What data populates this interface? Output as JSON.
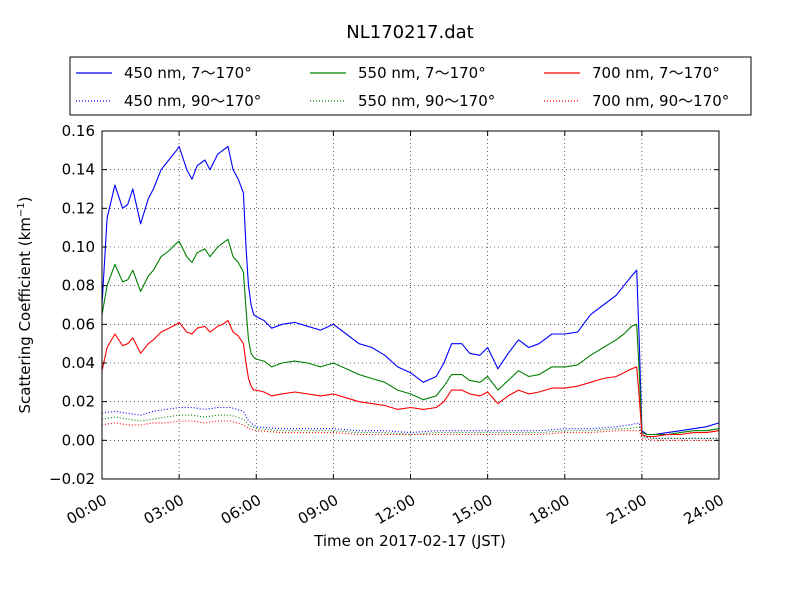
{
  "chart_data": {
    "type": "line",
    "title": "NL170217.dat",
    "xlabel": "Time on 2017-02-17 (JST)",
    "ylabel_main": "Scattering Coefficient (km",
    "ylabel_sup": "−1",
    "ylabel_close": ")",
    "xlim": [
      0,
      24
    ],
    "ylim": [
      -0.02,
      0.16
    ],
    "x_ticks": [
      {
        "value": 0,
        "label": "00:00"
      },
      {
        "value": 3,
        "label": "03:00"
      },
      {
        "value": 6,
        "label": "06:00"
      },
      {
        "value": 9,
        "label": "09:00"
      },
      {
        "value": 12,
        "label": "12:00"
      },
      {
        "value": 15,
        "label": "15:00"
      },
      {
        "value": 18,
        "label": "18:00"
      },
      {
        "value": 21,
        "label": "21:00"
      },
      {
        "value": 24,
        "label": "24:00"
      }
    ],
    "y_ticks": [
      {
        "value": -0.02,
        "label": "−0.02"
      },
      {
        "value": 0.0,
        "label": "0.00"
      },
      {
        "value": 0.02,
        "label": "0.02"
      },
      {
        "value": 0.04,
        "label": "0.04"
      },
      {
        "value": 0.06,
        "label": "0.06"
      },
      {
        "value": 0.08,
        "label": "0.08"
      },
      {
        "value": 0.1,
        "label": "0.10"
      },
      {
        "value": 0.12,
        "label": "0.12"
      },
      {
        "value": 0.14,
        "label": "0.14"
      },
      {
        "value": 0.16,
        "label": "0.16"
      }
    ],
    "grid": true,
    "legend_position": "top",
    "x_unit": "hours",
    "series": [
      {
        "name": "450 nm, 7～170°",
        "color": "#0000ff",
        "style": "solid",
        "x": [
          0,
          0.2,
          0.5,
          0.8,
          1.0,
          1.2,
          1.5,
          1.8,
          2.0,
          2.3,
          2.6,
          2.9,
          3.0,
          3.3,
          3.5,
          3.7,
          4.0,
          4.2,
          4.5,
          4.7,
          4.9,
          5.1,
          5.3,
          5.5,
          5.6,
          5.7,
          5.8,
          5.9,
          6.0,
          6.3,
          6.6,
          7.0,
          7.5,
          8.0,
          8.5,
          9.0,
          9.5,
          10.0,
          10.5,
          11.0,
          11.5,
          12.0,
          12.5,
          13.0,
          13.3,
          13.6,
          14.0,
          14.3,
          14.7,
          15.0,
          15.4,
          15.8,
          16.2,
          16.6,
          17.0,
          17.5,
          18.0,
          18.5,
          19.0,
          19.5,
          20.0,
          20.3,
          20.6,
          20.8,
          20.9,
          21.0,
          21.2,
          21.5,
          22.0,
          22.5,
          23.0,
          23.5,
          24.0
        ],
        "values": [
          0.07,
          0.115,
          0.132,
          0.12,
          0.122,
          0.13,
          0.112,
          0.125,
          0.13,
          0.14,
          0.145,
          0.15,
          0.152,
          0.14,
          0.135,
          0.142,
          0.145,
          0.14,
          0.148,
          0.15,
          0.152,
          0.14,
          0.135,
          0.128,
          0.1,
          0.08,
          0.07,
          0.065,
          0.064,
          0.062,
          0.058,
          0.06,
          0.061,
          0.059,
          0.057,
          0.06,
          0.055,
          0.05,
          0.048,
          0.044,
          0.038,
          0.035,
          0.03,
          0.033,
          0.04,
          0.05,
          0.05,
          0.045,
          0.044,
          0.048,
          0.037,
          0.045,
          0.052,
          0.048,
          0.05,
          0.055,
          0.055,
          0.056,
          0.065,
          0.07,
          0.075,
          0.08,
          0.085,
          0.088,
          0.05,
          0.005,
          0.003,
          0.003,
          0.004,
          0.005,
          0.006,
          0.007,
          0.009
        ]
      },
      {
        "name": "550 nm, 7～170°",
        "color": "#008000",
        "style": "solid",
        "x": [
          0,
          0.2,
          0.5,
          0.8,
          1.0,
          1.2,
          1.5,
          1.8,
          2.0,
          2.3,
          2.6,
          2.9,
          3.0,
          3.3,
          3.5,
          3.7,
          4.0,
          4.2,
          4.5,
          4.7,
          4.9,
          5.1,
          5.3,
          5.5,
          5.6,
          5.7,
          5.8,
          5.9,
          6.0,
          6.3,
          6.6,
          7.0,
          7.5,
          8.0,
          8.5,
          9.0,
          9.5,
          10.0,
          10.5,
          11.0,
          11.5,
          12.0,
          12.5,
          13.0,
          13.3,
          13.6,
          14.0,
          14.3,
          14.7,
          15.0,
          15.4,
          15.8,
          16.2,
          16.6,
          17.0,
          17.5,
          18.0,
          18.5,
          19.0,
          19.5,
          20.0,
          20.3,
          20.6,
          20.8,
          20.9,
          21.0,
          21.2,
          21.5,
          22.0,
          22.5,
          23.0,
          23.5,
          24.0
        ],
        "values": [
          0.065,
          0.08,
          0.091,
          0.082,
          0.083,
          0.088,
          0.077,
          0.085,
          0.088,
          0.095,
          0.098,
          0.102,
          0.103,
          0.095,
          0.092,
          0.097,
          0.099,
          0.095,
          0.1,
          0.102,
          0.104,
          0.095,
          0.092,
          0.087,
          0.068,
          0.052,
          0.045,
          0.043,
          0.042,
          0.041,
          0.038,
          0.04,
          0.041,
          0.04,
          0.038,
          0.04,
          0.037,
          0.034,
          0.032,
          0.03,
          0.026,
          0.024,
          0.021,
          0.023,
          0.028,
          0.034,
          0.034,
          0.031,
          0.03,
          0.033,
          0.026,
          0.031,
          0.036,
          0.033,
          0.034,
          0.038,
          0.038,
          0.039,
          0.044,
          0.048,
          0.052,
          0.055,
          0.059,
          0.06,
          0.035,
          0.004,
          0.003,
          0.003,
          0.003,
          0.004,
          0.005,
          0.005,
          0.006
        ]
      },
      {
        "name": "700 nm, 7～170°",
        "color": "#ff0000",
        "style": "solid",
        "x": [
          0,
          0.2,
          0.5,
          0.8,
          1.0,
          1.2,
          1.5,
          1.8,
          2.0,
          2.3,
          2.6,
          2.9,
          3.0,
          3.3,
          3.5,
          3.7,
          4.0,
          4.2,
          4.5,
          4.7,
          4.9,
          5.1,
          5.3,
          5.5,
          5.6,
          5.7,
          5.8,
          5.9,
          6.0,
          6.3,
          6.6,
          7.0,
          7.5,
          8.0,
          8.5,
          9.0,
          9.5,
          10.0,
          10.5,
          11.0,
          11.5,
          12.0,
          12.5,
          13.0,
          13.3,
          13.6,
          14.0,
          14.3,
          14.7,
          15.0,
          15.4,
          15.8,
          16.2,
          16.6,
          17.0,
          17.5,
          18.0,
          18.5,
          19.0,
          19.5,
          20.0,
          20.3,
          20.6,
          20.8,
          20.9,
          21.0,
          21.2,
          21.5,
          22.0,
          22.5,
          23.0,
          23.5,
          24.0
        ],
        "values": [
          0.036,
          0.048,
          0.055,
          0.049,
          0.05,
          0.053,
          0.045,
          0.05,
          0.052,
          0.056,
          0.058,
          0.06,
          0.061,
          0.056,
          0.055,
          0.058,
          0.059,
          0.056,
          0.059,
          0.06,
          0.062,
          0.056,
          0.054,
          0.05,
          0.04,
          0.032,
          0.028,
          0.026,
          0.026,
          0.025,
          0.023,
          0.024,
          0.025,
          0.024,
          0.023,
          0.024,
          0.022,
          0.02,
          0.019,
          0.018,
          0.016,
          0.017,
          0.016,
          0.017,
          0.02,
          0.026,
          0.026,
          0.024,
          0.023,
          0.025,
          0.019,
          0.023,
          0.026,
          0.024,
          0.025,
          0.027,
          0.027,
          0.028,
          0.03,
          0.032,
          0.033,
          0.035,
          0.037,
          0.038,
          0.022,
          0.003,
          0.002,
          0.002,
          0.003,
          0.003,
          0.004,
          0.004,
          0.005
        ]
      },
      {
        "name": "450 nm, 90～170°",
        "color": "#0000ff",
        "style": "dotted",
        "x": [
          0,
          0.5,
          1.0,
          1.5,
          2.0,
          2.5,
          3.0,
          3.5,
          4.0,
          4.5,
          5.0,
          5.5,
          5.7,
          6.0,
          7.0,
          8.0,
          9.0,
          10.0,
          11.0,
          12.0,
          13.0,
          14.0,
          15.0,
          16.0,
          17.0,
          18.0,
          19.0,
          20.0,
          20.5,
          20.9,
          21.0,
          21.5,
          22.0,
          23.0,
          24.0
        ],
        "values": [
          0.014,
          0.015,
          0.014,
          0.013,
          0.015,
          0.016,
          0.017,
          0.017,
          0.016,
          0.017,
          0.017,
          0.015,
          0.01,
          0.007,
          0.006,
          0.006,
          0.006,
          0.005,
          0.005,
          0.004,
          0.005,
          0.005,
          0.005,
          0.005,
          0.005,
          0.006,
          0.006,
          0.007,
          0.008,
          0.009,
          0.002,
          0.001,
          0.001,
          0.001,
          0.001
        ]
      },
      {
        "name": "550 nm, 90～170°",
        "color": "#008000",
        "style": "dotted",
        "x": [
          0,
          0.5,
          1.0,
          1.5,
          2.0,
          2.5,
          3.0,
          3.5,
          4.0,
          4.5,
          5.0,
          5.5,
          5.7,
          6.0,
          7.0,
          8.0,
          9.0,
          10.0,
          11.0,
          12.0,
          13.0,
          14.0,
          15.0,
          16.0,
          17.0,
          18.0,
          19.0,
          20.0,
          20.5,
          20.9,
          21.0,
          21.5,
          22.0,
          23.0,
          24.0
        ],
        "values": [
          0.011,
          0.012,
          0.011,
          0.01,
          0.011,
          0.012,
          0.013,
          0.013,
          0.012,
          0.013,
          0.013,
          0.011,
          0.008,
          0.006,
          0.005,
          0.005,
          0.005,
          0.004,
          0.004,
          0.003,
          0.004,
          0.004,
          0.004,
          0.004,
          0.004,
          0.005,
          0.005,
          0.006,
          0.006,
          0.007,
          0.002,
          0.001,
          0.001,
          0.001,
          0.001
        ]
      },
      {
        "name": "700 nm, 90～170°",
        "color": "#ff0000",
        "style": "dotted",
        "x": [
          0,
          0.5,
          1.0,
          1.5,
          2.0,
          2.5,
          3.0,
          3.5,
          4.0,
          4.5,
          5.0,
          5.5,
          5.7,
          6.0,
          7.0,
          8.0,
          9.0,
          10.0,
          11.0,
          12.0,
          13.0,
          14.0,
          15.0,
          16.0,
          17.0,
          18.0,
          19.0,
          20.0,
          20.5,
          20.9,
          21.0,
          21.5,
          22.0,
          23.0,
          24.0
        ],
        "values": [
          0.008,
          0.009,
          0.008,
          0.008,
          0.009,
          0.009,
          0.01,
          0.01,
          0.009,
          0.01,
          0.01,
          0.008,
          0.006,
          0.005,
          0.004,
          0.004,
          0.004,
          0.003,
          0.003,
          0.003,
          0.003,
          0.003,
          0.003,
          0.003,
          0.003,
          0.004,
          0.004,
          0.005,
          0.005,
          0.005,
          0.001,
          0.0,
          0.0,
          0.0,
          0.0
        ]
      }
    ]
  }
}
